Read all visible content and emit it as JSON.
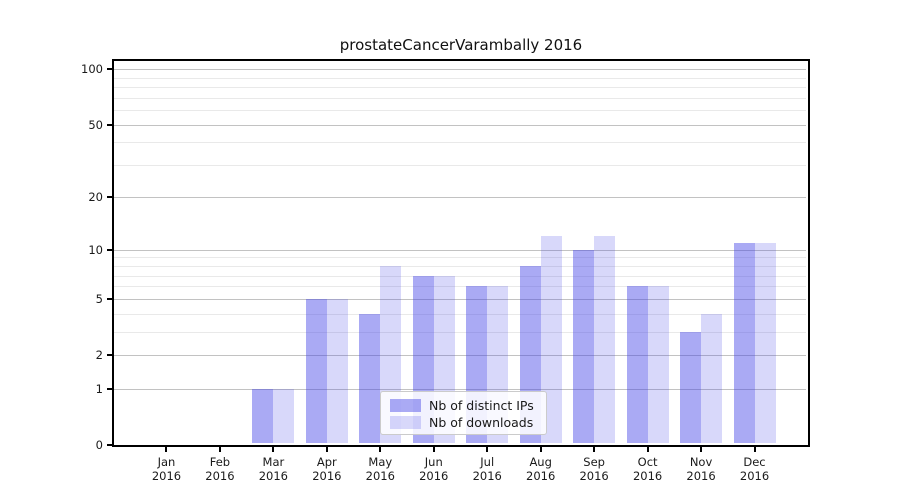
{
  "chart_data": {
    "type": "bar",
    "title": "prostateCancerVarambally 2016",
    "year_label": "2016",
    "months": [
      "Jan",
      "Feb",
      "Mar",
      "Apr",
      "May",
      "Jun",
      "Jul",
      "Aug",
      "Sep",
      "Oct",
      "Nov",
      "Dec"
    ],
    "series": [
      {
        "name": "Nb of distinct IPs",
        "color": "rgba(62,62,230,0.44)",
        "values": [
          0,
          0,
          1,
          5,
          4,
          7,
          6,
          8,
          10,
          6,
          3,
          11
        ]
      },
      {
        "name": "Nb of downloads",
        "color": "rgba(62,62,230,0.20)",
        "values": [
          0,
          0,
          1,
          5,
          8,
          7,
          6,
          12,
          12,
          6,
          4,
          11
        ]
      }
    ],
    "y_axis": {
      "scale": "log1p",
      "major_ticks": [
        0,
        1,
        2,
        5,
        10,
        20,
        50,
        100
      ],
      "minor_ticks": [
        3,
        4,
        6,
        7,
        8,
        9,
        30,
        40,
        60,
        70,
        80,
        90
      ],
      "ylim": [
        0,
        113
      ]
    },
    "grid": true,
    "legend_position": "inside-bottom-center",
    "colors": {
      "grid_major": "#c2c2c2",
      "grid_minor": "#e9e9e9",
      "spine": "#000000",
      "text": "#1a1a1a"
    }
  }
}
